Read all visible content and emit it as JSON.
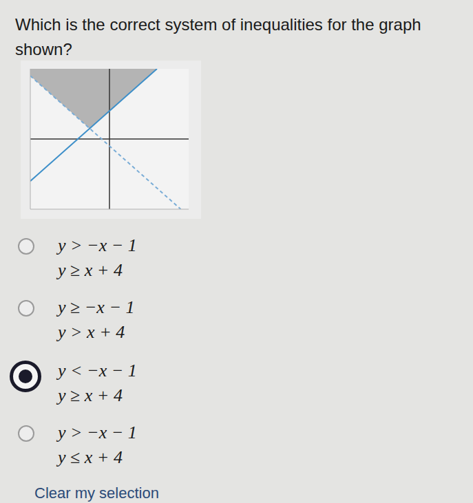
{
  "question": "Which is the correct system of inequalities for the graph shown?",
  "chart_data": {
    "type": "line",
    "xlim": [
      -10,
      10
    ],
    "ylim": [
      -10,
      10
    ],
    "xticks": [
      -10,
      -9,
      -8,
      -7,
      -6,
      -5,
      -4,
      -3,
      -2,
      -1,
      0,
      1,
      2,
      3,
      4,
      5,
      6,
      7,
      8,
      9,
      10
    ],
    "yticks": [
      -10,
      -9,
      -8,
      -7,
      -6,
      -5,
      -4,
      -3,
      -2,
      -1,
      0,
      1,
      2,
      3,
      4,
      5,
      6,
      7,
      8,
      9,
      10
    ],
    "grid": true,
    "tick_labels": false,
    "series": [
      {
        "color": "#3d8fc9",
        "line_style": "solid",
        "x": [
          -10,
          6
        ],
        "values": [
          -6,
          10
        ]
      },
      {
        "color": "#79acd6",
        "line_style": "dashed",
        "x": [
          -10,
          9
        ],
        "values": [
          9,
          -10
        ]
      }
    ],
    "shaded_region": {
      "color": "#8a8a8a",
      "x": [
        -10,
        -2.5,
        6
      ],
      "low": [
        9,
        1.5,
        10
      ],
      "high": [
        10,
        10,
        10
      ]
    }
  },
  "options": [
    [
      "y > −x − 1",
      "y ≥ x + 4"
    ],
    [
      "y ≥ −x − 1",
      "y > x + 4"
    ],
    [
      "y < −x − 1",
      "y ≥ x + 4"
    ],
    [
      "y > −x − 1",
      "y ≤ x + 4"
    ]
  ],
  "selected": 2,
  "clear_link": "Clear my selection"
}
